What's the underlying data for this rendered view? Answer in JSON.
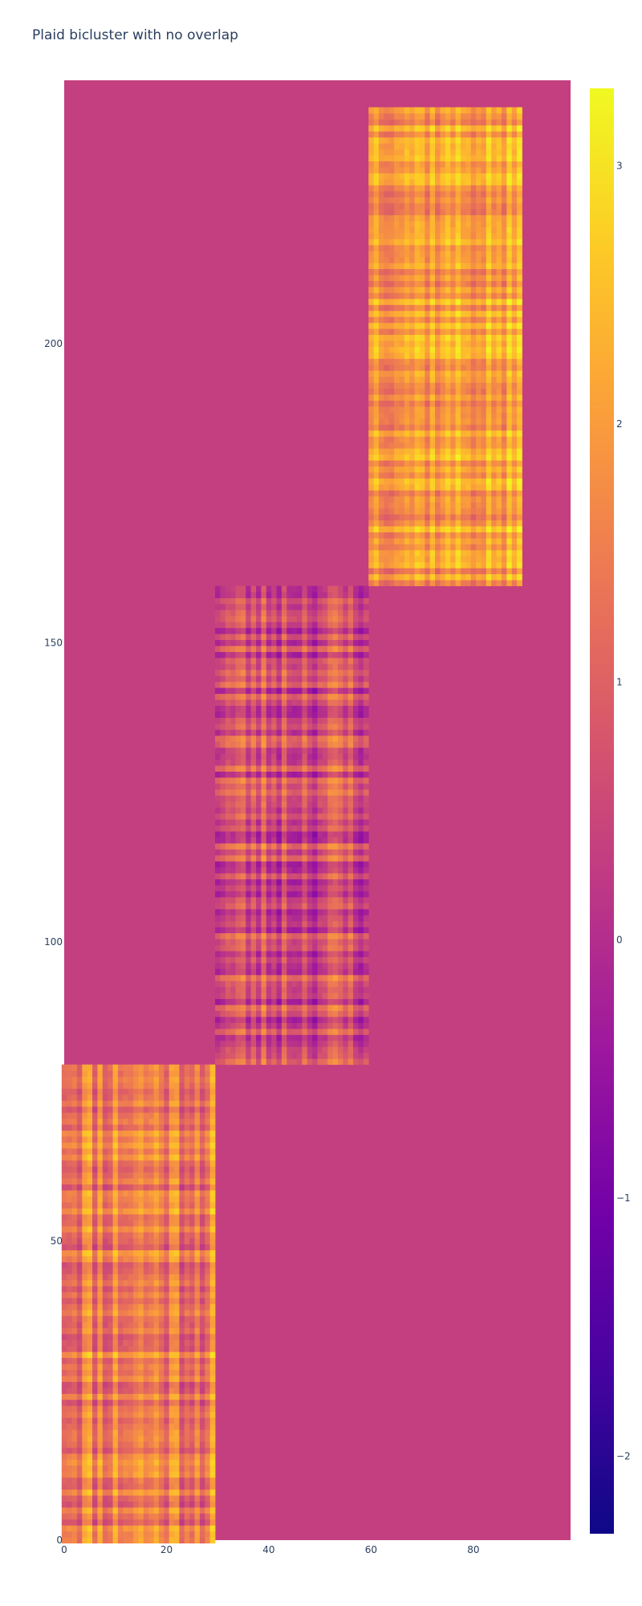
{
  "chart_data": {
    "type": "heatmap",
    "title": "Plaid bicluster with no overlap",
    "xlabel": "",
    "ylabel": "",
    "x_range": [
      0,
      99
    ],
    "y_range": [
      0,
      244
    ],
    "x_ticks": [
      0,
      20,
      40,
      60,
      80
    ],
    "y_ticks": [
      0,
      50,
      100,
      150,
      200
    ],
    "background_value": 0.35,
    "colorscale": [
      "#0d0887",
      "#46039f",
      "#7201a8",
      "#9c179e",
      "#bd3786",
      "#d8576b",
      "#ed7953",
      "#fb9f3a",
      "#fdca26",
      "#f0f921"
    ],
    "zmin": -2.3,
    "zmax": 3.3,
    "colorbar_ticks": [
      -2,
      -1,
      0,
      1,
      2,
      3
    ],
    "biclusters": [
      {
        "x_range": [
          0,
          30
        ],
        "y_range": [
          0,
          80
        ],
        "mean": 1.6,
        "seed": 11,
        "row_spread": 0.55,
        "col_spread": 0.85
      },
      {
        "x_range": [
          30,
          60
        ],
        "y_range": [
          80,
          160
        ],
        "mean": 0.7,
        "seed": 23,
        "row_spread": 0.7,
        "col_spread": 0.75
      },
      {
        "x_range": [
          60,
          90
        ],
        "y_range": [
          160,
          240
        ],
        "mean": 2.1,
        "seed": 37,
        "row_spread": 0.6,
        "col_spread": 0.6
      }
    ]
  }
}
